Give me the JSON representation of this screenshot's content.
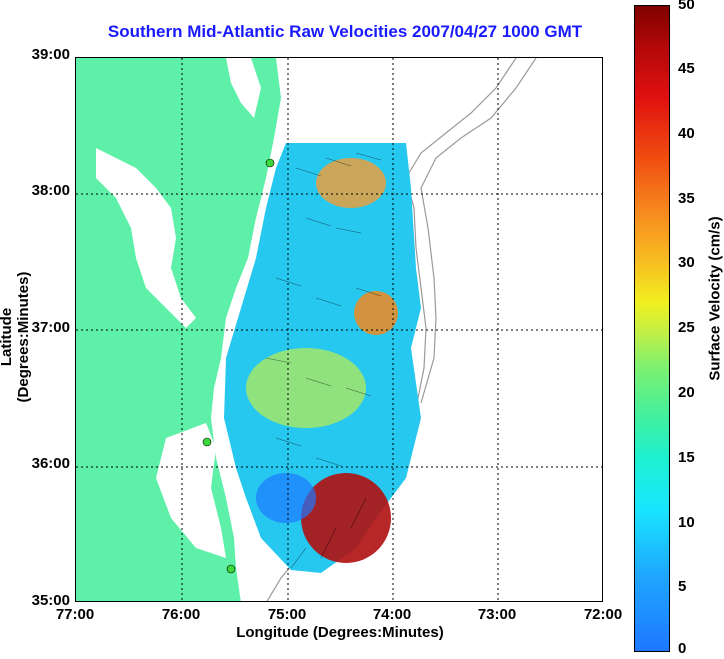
{
  "title": "Southern Mid-Atlantic Raw Velocities 2007/04/27 1000 GMT",
  "axes": {
    "xlabel": "Longitude (Degrees:Minutes)",
    "ylabel": "Latitude (Degrees:Minutes)",
    "x_ticks": [
      "77:00",
      "76:00",
      "75:00",
      "74:00",
      "73:00",
      "72:00"
    ],
    "y_ticks": [
      "39:00",
      "38:00",
      "37:00",
      "36:00",
      "35:00"
    ]
  },
  "colorbar": {
    "label": "Surface Velocity (cm/s)",
    "ticks": [
      "50",
      "45",
      "40",
      "35",
      "30",
      "25",
      "20",
      "15",
      "10",
      "5",
      "0"
    ]
  },
  "colors": {
    "land": "#5ef0a8",
    "title": "#1a1aff",
    "bathymetry": "#9a9a9a",
    "grid": "#000000",
    "station": "#3ad83a"
  }
}
